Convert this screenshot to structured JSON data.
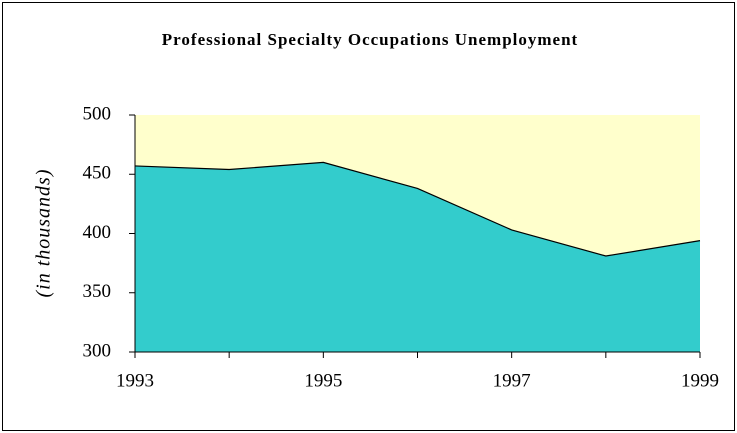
{
  "chart_data": {
    "type": "area",
    "title": "Professional Specialty Occupations Unemployment",
    "y_label": "(in thousands)",
    "categories": [
      "1993",
      null,
      "1995",
      null,
      "1997",
      null,
      "1999"
    ],
    "series": [
      {
        "name": null,
        "color": "#33cccc",
        "values": [
          457,
          454,
          460,
          438,
          403,
          381,
          394
        ]
      }
    ],
    "plot_background": "#ffffcc",
    "ylim": [
      300,
      500
    ],
    "yticks": [
      300,
      350,
      400,
      450,
      500
    ]
  }
}
